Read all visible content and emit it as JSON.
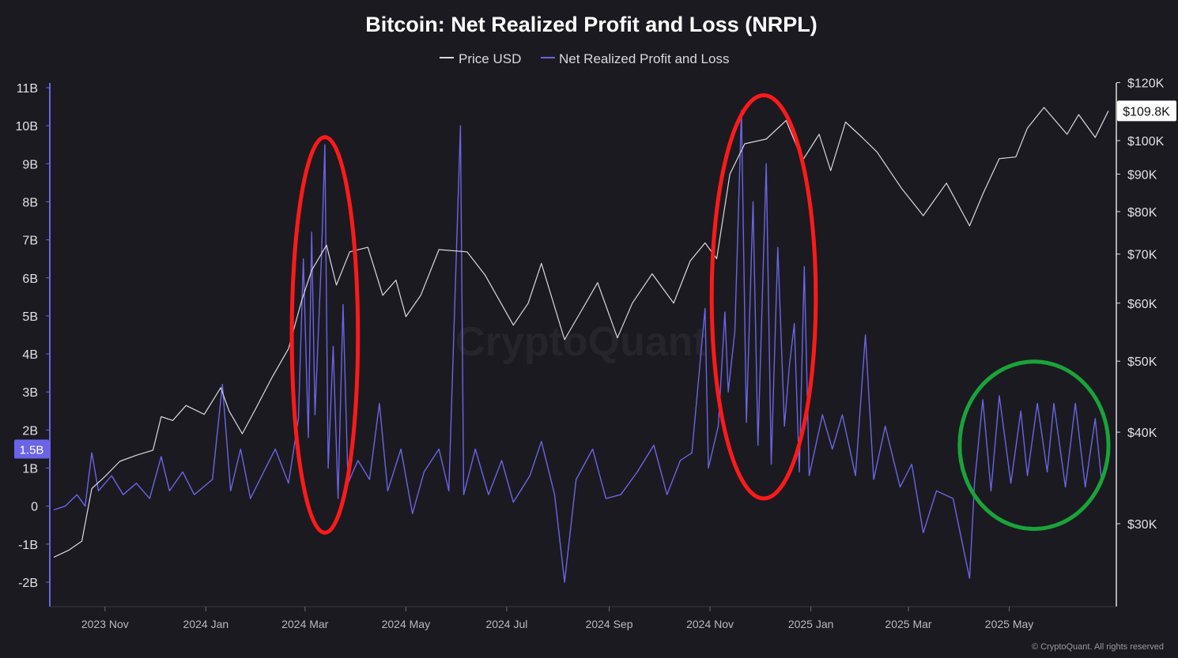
{
  "chart_data": {
    "type": "line",
    "title": "Bitcoin: Net Realized Profit and Loss (NRPL)",
    "watermark": "CryptoQuant",
    "credit": "© CryptoQuant. All rights reserved",
    "x_range": [
      "2023-10-01",
      "2025-06-30"
    ],
    "x_ticks": [
      {
        "date": "2023-11-01",
        "label": "2023 Nov"
      },
      {
        "date": "2024-01-01",
        "label": "2024 Jan"
      },
      {
        "date": "2024-03-01",
        "label": "2024 Mar"
      },
      {
        "date": "2024-05-01",
        "label": "2024 May"
      },
      {
        "date": "2024-07-01",
        "label": "2024 Jul"
      },
      {
        "date": "2024-09-01",
        "label": "2024 Sep"
      },
      {
        "date": "2024-11-01",
        "label": "2024 Nov"
      },
      {
        "date": "2025-01-01",
        "label": "2025 Jan"
      },
      {
        "date": "2025-03-01",
        "label": "2025 Mar"
      },
      {
        "date": "2025-05-01",
        "label": "2025 May"
      }
    ],
    "left_axis": {
      "range": [
        -2000000000,
        11000000000
      ],
      "ticks": [
        {
          "v": 11000000000,
          "label": "11B"
        },
        {
          "v": 10000000000,
          "label": "10B"
        },
        {
          "v": 9000000000,
          "label": "9B"
        },
        {
          "v": 8000000000,
          "label": "8B"
        },
        {
          "v": 7000000000,
          "label": "7B"
        },
        {
          "v": 6000000000,
          "label": "6B"
        },
        {
          "v": 5000000000,
          "label": "5B"
        },
        {
          "v": 4000000000,
          "label": "4B"
        },
        {
          "v": 3000000000,
          "label": "3B"
        },
        {
          "v": 2000000000,
          "label": "2B"
        },
        {
          "v": 1000000000,
          "label": "1B"
        },
        {
          "v": 0,
          "label": "0"
        },
        {
          "v": -1000000000,
          "label": "-1B"
        },
        {
          "v": -2000000000,
          "label": "-2B"
        }
      ],
      "current": {
        "v": 1500000000,
        "label": "1.5B"
      }
    },
    "right_axis": {
      "scale": "log",
      "range": [
        22000,
        120000
      ],
      "ticks": [
        {
          "v": 120000,
          "label": "$120K"
        },
        {
          "v": 100000,
          "label": "$100K"
        },
        {
          "v": 90000,
          "label": "$90K"
        },
        {
          "v": 80000,
          "label": "$80K"
        },
        {
          "v": 70000,
          "label": "$70K"
        },
        {
          "v": 60000,
          "label": "$60K"
        },
        {
          "v": 50000,
          "label": "$50K"
        },
        {
          "v": 40000,
          "label": "$40K"
        },
        {
          "v": 30000,
          "label": "$30K"
        }
      ],
      "current": {
        "v": 109800,
        "label": "$109.8K"
      }
    },
    "series": [
      {
        "name": "Price USD",
        "axis": "right",
        "color": "#d9d9de",
        "points": [
          [
            "2023-10-01",
            27000
          ],
          [
            "2023-10-10",
            27600
          ],
          [
            "2023-10-18",
            28400
          ],
          [
            "2023-10-24",
            33500
          ],
          [
            "2023-11-01",
            34800
          ],
          [
            "2023-11-10",
            36500
          ],
          [
            "2023-11-20",
            37200
          ],
          [
            "2023-11-30",
            37800
          ],
          [
            "2023-12-05",
            42000
          ],
          [
            "2023-12-12",
            41500
          ],
          [
            "2023-12-20",
            43500
          ],
          [
            "2023-12-31",
            42300
          ],
          [
            "2024-01-10",
            46000
          ],
          [
            "2024-01-15",
            42800
          ],
          [
            "2024-01-23",
            39800
          ],
          [
            "2024-01-31",
            43000
          ],
          [
            "2024-02-10",
            47500
          ],
          [
            "2024-02-20",
            52000
          ],
          [
            "2024-02-28",
            60500
          ],
          [
            "2024-03-05",
            66500
          ],
          [
            "2024-03-14",
            72000
          ],
          [
            "2024-03-20",
            63500
          ],
          [
            "2024-03-28",
            70500
          ],
          [
            "2024-04-08",
            71500
          ],
          [
            "2024-04-17",
            61500
          ],
          [
            "2024-04-25",
            64500
          ],
          [
            "2024-05-01",
            57500
          ],
          [
            "2024-05-10",
            61500
          ],
          [
            "2024-05-21",
            71000
          ],
          [
            "2024-06-07",
            70500
          ],
          [
            "2024-06-18",
            65500
          ],
          [
            "2024-07-05",
            56000
          ],
          [
            "2024-07-14",
            60000
          ],
          [
            "2024-07-22",
            68000
          ],
          [
            "2024-08-05",
            53500
          ],
          [
            "2024-08-15",
            58500
          ],
          [
            "2024-08-25",
            64000
          ],
          [
            "2024-09-06",
            53800
          ],
          [
            "2024-09-15",
            60000
          ],
          [
            "2024-09-27",
            65800
          ],
          [
            "2024-10-10",
            60000
          ],
          [
            "2024-10-20",
            68500
          ],
          [
            "2024-10-29",
            72500
          ],
          [
            "2024-11-05",
            69000
          ],
          [
            "2024-11-13",
            90000
          ],
          [
            "2024-11-22",
            99000
          ],
          [
            "2024-12-05",
            100500
          ],
          [
            "2024-12-17",
            106500
          ],
          [
            "2024-12-27",
            94000
          ],
          [
            "2025-01-06",
            102000
          ],
          [
            "2025-01-13",
            91000
          ],
          [
            "2025-01-22",
            106000
          ],
          [
            "2025-02-01",
            101000
          ],
          [
            "2025-02-10",
            96500
          ],
          [
            "2025-02-25",
            86000
          ],
          [
            "2025-03-10",
            79000
          ],
          [
            "2025-03-24",
            87500
          ],
          [
            "2025-04-07",
            76500
          ],
          [
            "2025-04-15",
            84500
          ],
          [
            "2025-04-25",
            94500
          ],
          [
            "2025-05-05",
            95000
          ],
          [
            "2025-05-12",
            104000
          ],
          [
            "2025-05-22",
            111000
          ],
          [
            "2025-06-05",
            102000
          ],
          [
            "2025-06-12",
            108500
          ],
          [
            "2025-06-22",
            101000
          ],
          [
            "2025-06-30",
            109800
          ]
        ]
      },
      {
        "name": "Net Realized Profit and Loss",
        "axis": "left",
        "color": "#6b64e6",
        "points": [
          [
            "2023-10-01",
            -100000000
          ],
          [
            "2023-10-08",
            0
          ],
          [
            "2023-10-15",
            300000000
          ],
          [
            "2023-10-20",
            0
          ],
          [
            "2023-10-24",
            1400000000
          ],
          [
            "2023-10-28",
            400000000
          ],
          [
            "2023-11-05",
            800000000
          ],
          [
            "2023-11-12",
            300000000
          ],
          [
            "2023-11-20",
            600000000
          ],
          [
            "2023-11-28",
            200000000
          ],
          [
            "2023-12-05",
            1300000000
          ],
          [
            "2023-12-10",
            400000000
          ],
          [
            "2023-12-18",
            900000000
          ],
          [
            "2023-12-25",
            300000000
          ],
          [
            "2024-01-05",
            700000000
          ],
          [
            "2024-01-11",
            3200000000
          ],
          [
            "2024-01-16",
            400000000
          ],
          [
            "2024-01-22",
            1500000000
          ],
          [
            "2024-01-28",
            200000000
          ],
          [
            "2024-02-05",
            900000000
          ],
          [
            "2024-02-12",
            1500000000
          ],
          [
            "2024-02-20",
            600000000
          ],
          [
            "2024-02-26",
            2300000000
          ],
          [
            "2024-02-29",
            6500000000
          ],
          [
            "2024-03-03",
            1800000000
          ],
          [
            "2024-03-05",
            7200000000
          ],
          [
            "2024-03-07",
            2400000000
          ],
          [
            "2024-03-11",
            6600000000
          ],
          [
            "2024-03-13",
            9500000000
          ],
          [
            "2024-03-15",
            1000000000
          ],
          [
            "2024-03-18",
            4200000000
          ],
          [
            "2024-03-21",
            200000000
          ],
          [
            "2024-03-24",
            5300000000
          ],
          [
            "2024-03-27",
            600000000
          ],
          [
            "2024-04-02",
            1200000000
          ],
          [
            "2024-04-09",
            700000000
          ],
          [
            "2024-04-15",
            2700000000
          ],
          [
            "2024-04-20",
            400000000
          ],
          [
            "2024-04-28",
            1500000000
          ],
          [
            "2024-05-05",
            -200000000
          ],
          [
            "2024-05-12",
            900000000
          ],
          [
            "2024-05-21",
            1500000000
          ],
          [
            "2024-05-27",
            400000000
          ],
          [
            "2024-06-03",
            10000000000
          ],
          [
            "2024-06-05",
            300000000
          ],
          [
            "2024-06-12",
            1500000000
          ],
          [
            "2024-06-20",
            300000000
          ],
          [
            "2024-06-28",
            1200000000
          ],
          [
            "2024-07-05",
            100000000
          ],
          [
            "2024-07-15",
            800000000
          ],
          [
            "2024-07-22",
            1700000000
          ],
          [
            "2024-07-30",
            300000000
          ],
          [
            "2024-08-05",
            -2000000000
          ],
          [
            "2024-08-12",
            700000000
          ],
          [
            "2024-08-22",
            1500000000
          ],
          [
            "2024-08-30",
            200000000
          ],
          [
            "2024-09-08",
            300000000
          ],
          [
            "2024-09-18",
            900000000
          ],
          [
            "2024-09-28",
            1600000000
          ],
          [
            "2024-10-06",
            300000000
          ],
          [
            "2024-10-14",
            1200000000
          ],
          [
            "2024-10-21",
            1400000000
          ],
          [
            "2024-10-29",
            5200000000
          ],
          [
            "2024-10-31",
            1000000000
          ],
          [
            "2024-11-06",
            2100000000
          ],
          [
            "2024-11-10",
            5100000000
          ],
          [
            "2024-11-12",
            3000000000
          ],
          [
            "2024-11-16",
            4600000000
          ],
          [
            "2024-11-20",
            10400000000
          ],
          [
            "2024-11-23",
            2200000000
          ],
          [
            "2024-11-27",
            8000000000
          ],
          [
            "2024-11-30",
            1600000000
          ],
          [
            "2024-12-05",
            9000000000
          ],
          [
            "2024-12-08",
            1100000000
          ],
          [
            "2024-12-12",
            6800000000
          ],
          [
            "2024-12-16",
            2100000000
          ],
          [
            "2024-12-19",
            3700000000
          ],
          [
            "2024-12-22",
            4800000000
          ],
          [
            "2024-12-25",
            900000000
          ],
          [
            "2024-12-28",
            6300000000
          ],
          [
            "2024-12-31",
            800000000
          ],
          [
            "2025-01-08",
            2400000000
          ],
          [
            "2025-01-14",
            1500000000
          ],
          [
            "2025-01-20",
            2400000000
          ],
          [
            "2025-01-28",
            800000000
          ],
          [
            "2025-02-03",
            4500000000
          ],
          [
            "2025-02-08",
            700000000
          ],
          [
            "2025-02-15",
            2100000000
          ],
          [
            "2025-02-24",
            500000000
          ],
          [
            "2025-03-03",
            1100000000
          ],
          [
            "2025-03-10",
            -700000000
          ],
          [
            "2025-03-18",
            400000000
          ],
          [
            "2025-03-28",
            200000000
          ],
          [
            "2025-04-07",
            -1900000000
          ],
          [
            "2025-04-10",
            600000000
          ],
          [
            "2025-04-15",
            2800000000
          ],
          [
            "2025-04-20",
            400000000
          ],
          [
            "2025-04-25",
            2900000000
          ],
          [
            "2025-05-02",
            600000000
          ],
          [
            "2025-05-08",
            2500000000
          ],
          [
            "2025-05-12",
            800000000
          ],
          [
            "2025-05-18",
            2700000000
          ],
          [
            "2025-05-24",
            900000000
          ],
          [
            "2025-05-28",
            2700000000
          ],
          [
            "2025-06-04",
            500000000
          ],
          [
            "2025-06-10",
            2700000000
          ],
          [
            "2025-06-16",
            500000000
          ],
          [
            "2025-06-22",
            2300000000
          ],
          [
            "2025-06-26",
            600000000
          ],
          [
            "2025-06-30",
            1500000000
          ]
        ]
      }
    ],
    "annotations": [
      {
        "shape": "ellipse",
        "color": "#ff1a1a",
        "x_range": [
          "2024-02-22",
          "2024-04-02"
        ],
        "y_range": [
          -700000000,
          9700000000
        ]
      },
      {
        "shape": "ellipse",
        "color": "#ff1a1a",
        "x_range": [
          "2024-11-02",
          "2025-01-04"
        ],
        "y_range": [
          200000000,
          10800000000
        ]
      },
      {
        "shape": "ellipse",
        "color": "#1aa33a",
        "x_range": [
          "2025-04-01",
          "2025-06-30"
        ],
        "y_range": [
          -600000000,
          3800000000
        ]
      }
    ]
  }
}
